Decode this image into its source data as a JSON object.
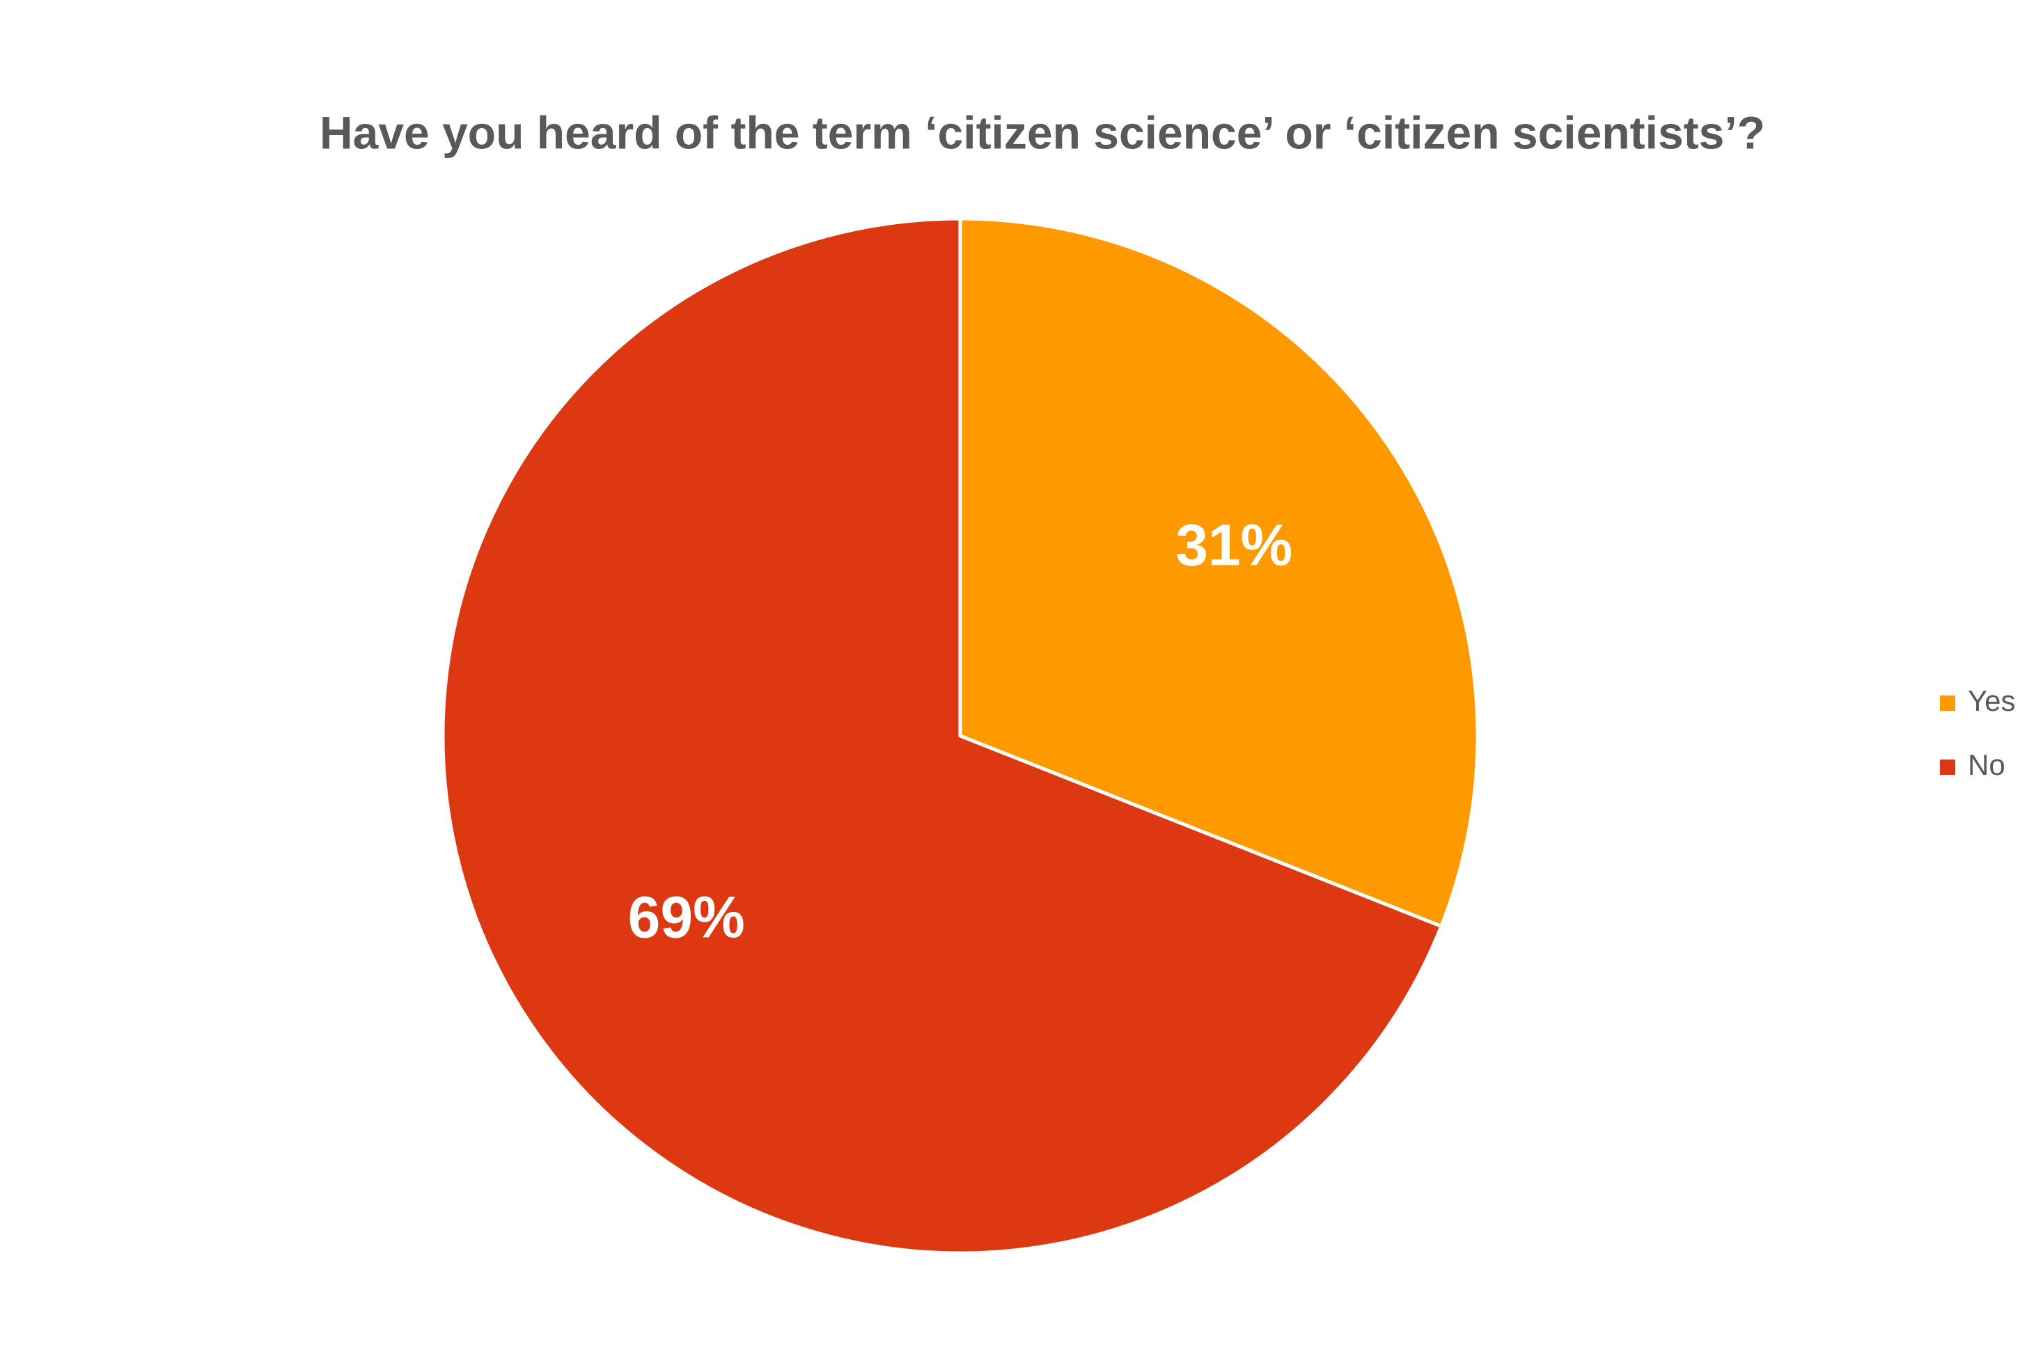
{
  "chart_data": {
    "type": "pie",
    "title": "Have you heard of the term ‘citizen science’ or ‘citizen scientists’?",
    "categories": [
      "Yes",
      "No"
    ],
    "values": [
      31,
      69
    ],
    "value_labels": [
      "31%",
      "69%"
    ],
    "colors": [
      "#fe9a00",
      "#dc3812"
    ],
    "legend": "right"
  }
}
